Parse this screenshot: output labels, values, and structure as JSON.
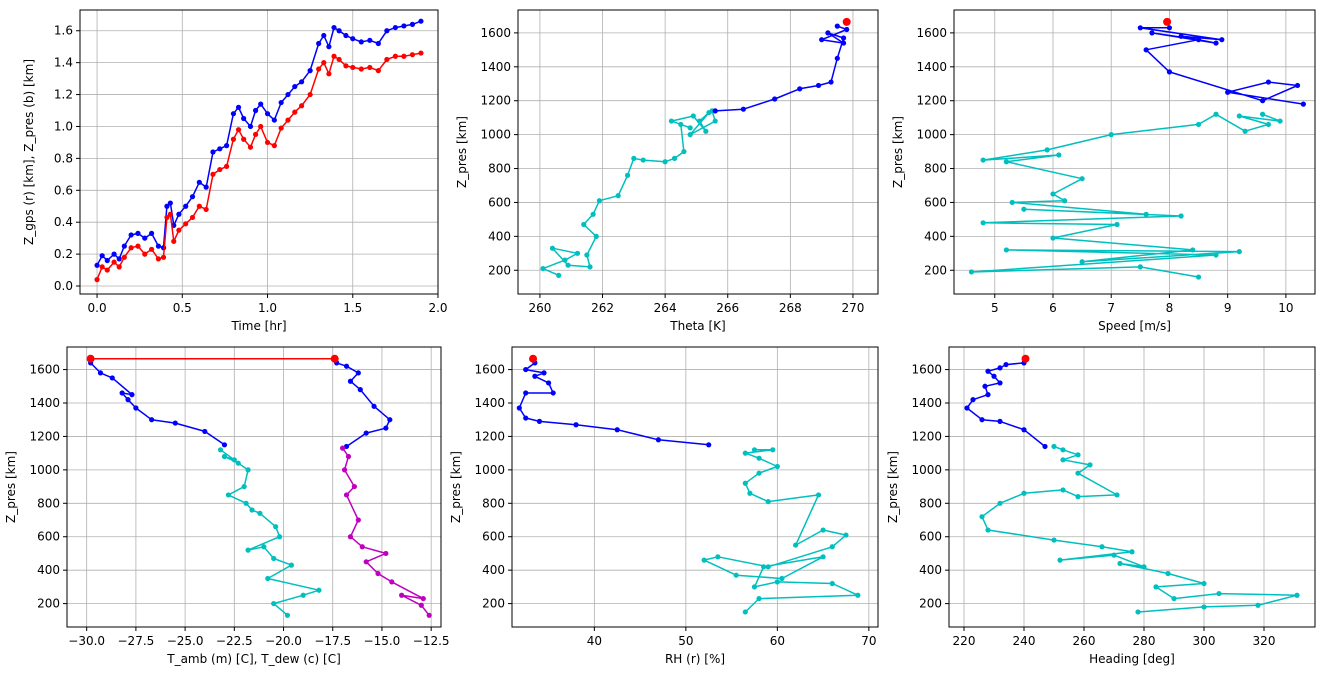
{
  "colors": {
    "blue": "#0000ff",
    "red": "#ff0000",
    "cyan": "#00bfbf",
    "magenta": "#bf00bf",
    "grid": "#b0b0b0"
  },
  "chart_data": [
    {
      "type": "line",
      "xlabel": "Time [hr]",
      "ylabel": "Z_gps (r) [km], Z_pres (b) [km]",
      "xlim": [
        -0.1,
        2.0
      ],
      "ylim": [
        -0.05,
        1.73
      ],
      "xticks": [
        0.0,
        0.5,
        1.0,
        1.5,
        2.0
      ],
      "xtick_labels": [
        "0.0",
        "0.5",
        "1.0",
        "1.5",
        "2.0"
      ],
      "yticks": [
        0.0,
        0.2,
        0.4,
        0.6,
        0.8,
        1.0,
        1.2,
        1.4,
        1.6
      ],
      "ytick_labels": [
        "0.0",
        "0.2",
        "0.4",
        "0.6",
        "0.8",
        "1.0",
        "1.2",
        "1.4",
        "1.6"
      ],
      "grid": true,
      "series": [
        {
          "color": "blue",
          "marker": true,
          "x": [
            0.0,
            0.03,
            0.06,
            0.1,
            0.13,
            0.16,
            0.2,
            0.24,
            0.28,
            0.32,
            0.36,
            0.39,
            0.41,
            0.43,
            0.45,
            0.48,
            0.52,
            0.56,
            0.6,
            0.64,
            0.68,
            0.72,
            0.76,
            0.8,
            0.83,
            0.86,
            0.9,
            0.93,
            0.96,
            1.0,
            1.04,
            1.08,
            1.12,
            1.16,
            1.2,
            1.25,
            1.3,
            1.33,
            1.36,
            1.39,
            1.42,
            1.46,
            1.5,
            1.55,
            1.6,
            1.65,
            1.7,
            1.75,
            1.8,
            1.85,
            1.9
          ],
          "y": [
            0.13,
            0.19,
            0.16,
            0.2,
            0.17,
            0.25,
            0.32,
            0.33,
            0.3,
            0.33,
            0.25,
            0.24,
            0.5,
            0.52,
            0.38,
            0.45,
            0.5,
            0.56,
            0.65,
            0.62,
            0.84,
            0.86,
            0.88,
            1.08,
            1.12,
            1.05,
            1.0,
            1.1,
            1.14,
            1.08,
            1.04,
            1.15,
            1.2,
            1.25,
            1.28,
            1.35,
            1.52,
            1.57,
            1.5,
            1.62,
            1.6,
            1.57,
            1.55,
            1.53,
            1.54,
            1.52,
            1.6,
            1.62,
            1.63,
            1.64,
            1.66
          ]
        },
        {
          "color": "red",
          "marker": true,
          "x": [
            0.0,
            0.03,
            0.06,
            0.1,
            0.13,
            0.16,
            0.2,
            0.24,
            0.28,
            0.32,
            0.36,
            0.39,
            0.41,
            0.43,
            0.45,
            0.48,
            0.52,
            0.56,
            0.6,
            0.64,
            0.68,
            0.72,
            0.76,
            0.8,
            0.83,
            0.86,
            0.9,
            0.93,
            0.96,
            1.0,
            1.04,
            1.08,
            1.12,
            1.16,
            1.2,
            1.25,
            1.3,
            1.33,
            1.36,
            1.39,
            1.42,
            1.46,
            1.5,
            1.55,
            1.6,
            1.65,
            1.7,
            1.75,
            1.8,
            1.85,
            1.9
          ],
          "y": [
            0.04,
            0.12,
            0.1,
            0.15,
            0.12,
            0.18,
            0.24,
            0.25,
            0.2,
            0.23,
            0.17,
            0.18,
            0.43,
            0.45,
            0.28,
            0.35,
            0.39,
            0.43,
            0.5,
            0.48,
            0.7,
            0.73,
            0.75,
            0.92,
            0.98,
            0.92,
            0.87,
            0.95,
            1.0,
            0.9,
            0.88,
            0.99,
            1.04,
            1.09,
            1.13,
            1.2,
            1.36,
            1.4,
            1.33,
            1.44,
            1.42,
            1.38,
            1.37,
            1.36,
            1.37,
            1.35,
            1.42,
            1.44,
            1.44,
            1.45,
            1.46
          ]
        }
      ]
    },
    {
      "type": "line",
      "xlabel": "Theta [K]",
      "ylabel": "Z_pres [km]",
      "xlim": [
        259.3,
        270.8
      ],
      "ylim": [
        60,
        1735
      ],
      "xticks": [
        260,
        262,
        264,
        266,
        268,
        270
      ],
      "xtick_labels": [
        "260",
        "262",
        "264",
        "266",
        "268",
        "270"
      ],
      "yticks": [
        200,
        400,
        600,
        800,
        1000,
        1200,
        1400,
        1600
      ],
      "ytick_labels": [
        "200",
        "400",
        "600",
        "800",
        "1000",
        "1200",
        "1400",
        "1600"
      ],
      "grid": true,
      "series": [
        {
          "color": "cyan",
          "marker": true,
          "x": [
            260.6,
            260.1,
            260.8,
            261.2,
            260.4,
            260.9,
            261.6,
            261.5,
            261.8,
            261.4,
            261.7,
            261.9,
            262.5,
            262.8,
            263.0,
            263.3,
            264.0,
            264.3,
            264.6,
            264.5,
            264.8,
            264.2,
            264.9,
            265.3,
            265.1,
            265.4,
            264.8,
            265.6,
            265.5
          ],
          "y": [
            170,
            210,
            260,
            300,
            330,
            230,
            220,
            290,
            400,
            470,
            530,
            610,
            640,
            760,
            860,
            850,
            840,
            860,
            900,
            1060,
            1040,
            1080,
            1110,
            1020,
            1080,
            1130,
            1000,
            1080,
            1140
          ]
        },
        {
          "color": "blue",
          "marker": true,
          "x": [
            265.6,
            266.5,
            267.5,
            268.3,
            268.9,
            269.3,
            269.5,
            269.7,
            269.2,
            269.7,
            269.0,
            269.8,
            269.5
          ],
          "y": [
            1140,
            1150,
            1210,
            1270,
            1290,
            1310,
            1450,
            1570,
            1600,
            1540,
            1560,
            1620,
            1640
          ]
        },
        {
          "color": "red",
          "marker": true,
          "x": [
            269.8
          ],
          "y": [
            1665
          ]
        }
      ]
    },
    {
      "type": "line",
      "xlabel": "Speed [m/s]",
      "ylabel": "Z_pres [km]",
      "xlim": [
        4.3,
        10.5
      ],
      "ylim": [
        60,
        1735
      ],
      "xticks": [
        5,
        6,
        7,
        8,
        9,
        10
      ],
      "xtick_labels": [
        "5",
        "6",
        "7",
        "8",
        "9",
        "10"
      ],
      "yticks": [
        200,
        400,
        600,
        800,
        1000,
        1200,
        1400,
        1600
      ],
      "ytick_labels": [
        "200",
        "400",
        "600",
        "800",
        "1000",
        "1200",
        "1400",
        "1600"
      ],
      "grid": true,
      "series": [
        {
          "color": "cyan",
          "marker": true,
          "x": [
            8.5,
            7.5,
            4.6,
            8.8,
            5.2,
            9.2,
            6.5,
            8.4,
            6.0,
            7.1,
            4.8,
            8.2,
            5.5,
            7.6,
            5.3,
            6.2,
            6.0,
            6.5,
            5.2,
            6.1,
            4.8,
            5.9,
            7.0,
            8.5,
            8.8,
            9.3,
            9.7,
            9.2,
            9.9,
            9.6
          ],
          "y": [
            160,
            220,
            190,
            290,
            320,
            310,
            250,
            320,
            390,
            470,
            480,
            520,
            560,
            530,
            600,
            610,
            650,
            740,
            840,
            880,
            850,
            910,
            1000,
            1060,
            1120,
            1020,
            1060,
            1110,
            1080,
            1120
          ]
        },
        {
          "color": "blue",
          "marker": true,
          "x": [
            10.3,
            9.0,
            9.7,
            10.2,
            9.6,
            8.0,
            7.6,
            8.5,
            7.7,
            8.8,
            8.2,
            8.9,
            7.5,
            8.0
          ],
          "y": [
            1180,
            1250,
            1310,
            1290,
            1200,
            1370,
            1500,
            1560,
            1600,
            1540,
            1580,
            1560,
            1630,
            1630
          ]
        },
        {
          "color": "red",
          "marker": true,
          "x": [
            7.96
          ],
          "y": [
            1665
          ]
        }
      ]
    },
    {
      "type": "line",
      "xlabel": "T_amb (m) [C], T_dew (c) [C]",
      "ylabel": "Z_pres [km]",
      "xlim": [
        -31.0,
        -12.0
      ],
      "ylim": [
        60,
        1735
      ],
      "xticks": [
        -30.0,
        -27.5,
        -25.0,
        -22.5,
        -20.0,
        -17.5,
        -15.0,
        -12.5
      ],
      "xtick_labels": [
        "−30.0",
        "−27.5",
        "−25.0",
        "−22.5",
        "−20.0",
        "−17.5",
        "−15.0",
        "−12.5"
      ],
      "yticks": [
        200,
        400,
        600,
        800,
        1000,
        1200,
        1400,
        1600
      ],
      "ytick_labels": [
        "200",
        "400",
        "600",
        "800",
        "1000",
        "1200",
        "1400",
        "1600"
      ],
      "grid": true,
      "series": [
        {
          "color": "cyan",
          "marker": true,
          "x": [
            -19.8,
            -20.5,
            -19.0,
            -18.2,
            -20.8,
            -19.6,
            -20.5,
            -21.0,
            -21.8,
            -20.2,
            -20.4,
            -21.2,
            -21.6,
            -21.9,
            -22.8,
            -22.0,
            -21.8,
            -22.3,
            -23.0,
            -22.5,
            -23.2
          ],
          "y": [
            130,
            200,
            250,
            280,
            350,
            430,
            470,
            540,
            520,
            600,
            660,
            740,
            760,
            800,
            850,
            900,
            1000,
            1040,
            1080,
            1060,
            1120
          ]
        },
        {
          "color": "blue",
          "marker": true,
          "x": [
            -23.0,
            -24.0,
            -25.5,
            -26.7,
            -27.5,
            -27.9,
            -28.2,
            -27.7,
            -28.7,
            -29.3,
            -29.8
          ],
          "y": [
            1150,
            1230,
            1280,
            1300,
            1370,
            1420,
            1460,
            1450,
            1550,
            1580,
            1640
          ]
        },
        {
          "color": "blue",
          "marker": true,
          "x": [
            -16.8,
            -15.8,
            -14.8,
            -14.6,
            -15.4,
            -16.1,
            -16.6,
            -16.2,
            -16.8,
            -17.3
          ],
          "y": [
            1140,
            1220,
            1250,
            1300,
            1380,
            1480,
            1530,
            1580,
            1620,
            1640
          ]
        },
        {
          "color": "magenta",
          "marker": true,
          "x": [
            -12.6,
            -13.0,
            -14.0,
            -12.9,
            -14.5,
            -15.2,
            -15.8,
            -14.8,
            -16.0,
            -16.6,
            -16.2,
            -16.8,
            -16.4,
            -16.9,
            -16.7,
            -17.0
          ],
          "y": [
            130,
            190,
            250,
            230,
            330,
            380,
            450,
            500,
            540,
            600,
            700,
            850,
            900,
            1000,
            1080,
            1130
          ]
        },
        {
          "color": "red",
          "marker": true,
          "x": [
            -29.8,
            -17.4
          ],
          "y": [
            1665,
            1665
          ]
        }
      ]
    },
    {
      "type": "line",
      "xlabel": "RH (r) [%]",
      "ylabel": "Z_pres [km]",
      "xlim": [
        31.0,
        71.0
      ],
      "ylim": [
        60,
        1735
      ],
      "xticks": [
        40,
        50,
        60,
        70
      ],
      "xtick_labels": [
        "40",
        "50",
        "60",
        "70"
      ],
      "yticks": [
        200,
        400,
        600,
        800,
        1000,
        1200,
        1400,
        1600
      ],
      "ytick_labels": [
        "200",
        "400",
        "600",
        "800",
        "1000",
        "1200",
        "1400",
        "1600"
      ],
      "grid": true,
      "series": [
        {
          "color": "cyan",
          "marker": true,
          "x": [
            56.5,
            58.0,
            68.8,
            66.0,
            60.0,
            57.5,
            58.5,
            65.0,
            60.5,
            55.5,
            52.0,
            53.5,
            59.0,
            66.0,
            67.5,
            65.0,
            62.0,
            64.5,
            59.0,
            57.0,
            56.5,
            58.0,
            60.0,
            58.0,
            56.5,
            59.5,
            57.5
          ],
          "y": [
            150,
            230,
            250,
            320,
            330,
            300,
            420,
            480,
            350,
            370,
            460,
            480,
            420,
            540,
            610,
            640,
            550,
            850,
            810,
            860,
            920,
            980,
            1020,
            1070,
            1100,
            1120,
            1120
          ]
        },
        {
          "color": "blue",
          "marker": true,
          "x": [
            52.5,
            47.0,
            42.5,
            38.0,
            34.0,
            32.5,
            31.8,
            32.5,
            35.5,
            35.0,
            33.5,
            34.5,
            32.5,
            33.5
          ],
          "y": [
            1150,
            1180,
            1240,
            1270,
            1290,
            1310,
            1370,
            1460,
            1460,
            1520,
            1560,
            1580,
            1600,
            1640
          ]
        },
        {
          "color": "red",
          "marker": true,
          "x": [
            33.3
          ],
          "y": [
            1665
          ]
        }
      ]
    },
    {
      "type": "line",
      "xlabel": "Heading [deg]",
      "ylabel": "Z_pres [km]",
      "xlim": [
        215,
        337
      ],
      "ylim": [
        60,
        1735
      ],
      "xticks": [
        220,
        240,
        260,
        280,
        300,
        320
      ],
      "xtick_labels": [
        "220",
        "240",
        "260",
        "280",
        "300",
        "320"
      ],
      "yticks": [
        200,
        400,
        600,
        800,
        1000,
        1200,
        1400,
        1600
      ],
      "ytick_labels": [
        "200",
        "400",
        "600",
        "800",
        "1000",
        "1200",
        "1400",
        "1600"
      ],
      "grid": true,
      "series": [
        {
          "color": "cyan",
          "marker": true,
          "x": [
            278,
            300,
            318,
            331,
            305,
            290,
            284,
            300,
            288,
            272,
            280,
            270,
            252,
            276,
            266,
            250,
            228,
            226,
            232,
            240,
            253,
            258,
            271,
            258,
            262,
            253,
            258,
            253,
            250
          ],
          "y": [
            150,
            180,
            190,
            250,
            260,
            230,
            300,
            320,
            380,
            440,
            420,
            490,
            460,
            510,
            540,
            580,
            640,
            720,
            800,
            860,
            880,
            840,
            850,
            980,
            1030,
            1060,
            1090,
            1120,
            1140
          ]
        },
        {
          "color": "blue",
          "marker": true,
          "x": [
            247,
            240,
            232,
            226,
            221,
            223,
            228,
            227,
            232,
            230,
            228,
            232,
            234,
            240
          ],
          "y": [
            1140,
            1240,
            1290,
            1300,
            1370,
            1420,
            1450,
            1500,
            1520,
            1560,
            1590,
            1610,
            1630,
            1640
          ]
        },
        {
          "color": "red",
          "marker": true,
          "x": [
            240.5
          ],
          "y": [
            1665
          ]
        }
      ]
    }
  ]
}
